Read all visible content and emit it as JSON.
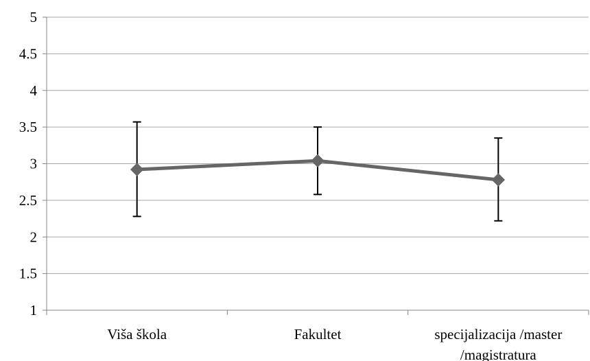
{
  "chart_data": {
    "type": "line",
    "title": "",
    "xlabel": "",
    "ylabel": "",
    "ylim": [
      1,
      5
    ],
    "y_ticks": [
      "1",
      "1.5",
      "2",
      "2.5",
      "3",
      "3.5",
      "4",
      "4.5",
      "5"
    ],
    "grid": "horizontal",
    "legend": "none",
    "categories": [
      [
        "Viša škola"
      ],
      [
        "Fakultet"
      ],
      [
        "specijalizacija /master",
        "/magistratura"
      ]
    ],
    "series": [
      {
        "values": [
          2.92,
          3.04,
          2.78
        ],
        "error_low": [
          2.28,
          2.58,
          2.22
        ],
        "error_high": [
          3.57,
          3.5,
          3.35
        ],
        "marker": "diamond",
        "color": "#666666"
      }
    ],
    "colors": {
      "line": "#666666",
      "error_bar": "#000000",
      "grid": "#a6a6a6",
      "axis": "#868686"
    }
  }
}
